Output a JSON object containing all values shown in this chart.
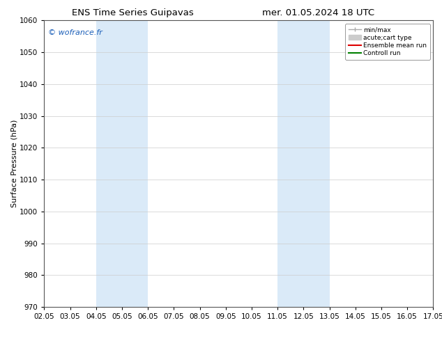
{
  "title_left": "ENS Time Series Guipavas",
  "title_right": "mer. 01.05.2024 18 UTC",
  "ylabel": "Surface Pressure (hPa)",
  "ylim": [
    970,
    1060
  ],
  "yticks": [
    970,
    980,
    990,
    1000,
    1010,
    1020,
    1030,
    1040,
    1050,
    1060
  ],
  "xlim": [
    0,
    15
  ],
  "xtick_labels": [
    "02.05",
    "03.05",
    "04.05",
    "05.05",
    "06.05",
    "07.05",
    "08.05",
    "09.05",
    "10.05",
    "11.05",
    "12.05",
    "13.05",
    "14.05",
    "15.05",
    "16.05",
    "17.05"
  ],
  "xtick_positions": [
    0,
    1,
    2,
    3,
    4,
    5,
    6,
    7,
    8,
    9,
    10,
    11,
    12,
    13,
    14,
    15
  ],
  "shaded_bands": [
    {
      "x_start": 2,
      "x_end": 4,
      "color": "#daeaf8"
    },
    {
      "x_start": 9,
      "x_end": 11,
      "color": "#daeaf8"
    }
  ],
  "watermark": "© wofrance.fr",
  "watermark_color": "#1a5eb8",
  "legend_items": [
    {
      "label": "min/max",
      "color": "#aaaaaa",
      "lw": 1.0,
      "style": "errbar"
    },
    {
      "label": "acute;cart type",
      "color": "#cccccc",
      "lw": 5,
      "style": "thick"
    },
    {
      "label": "Ensemble mean run",
      "color": "#dd0000",
      "lw": 1.5,
      "style": "line"
    },
    {
      "label": "Controll run",
      "color": "#008000",
      "lw": 1.5,
      "style": "line"
    }
  ],
  "bg_color": "#ffffff",
  "axes_bg_color": "#ffffff",
  "grid_color": "#cccccc",
  "title_fontsize": 9.5,
  "tick_fontsize": 7.5,
  "ylabel_fontsize": 8
}
